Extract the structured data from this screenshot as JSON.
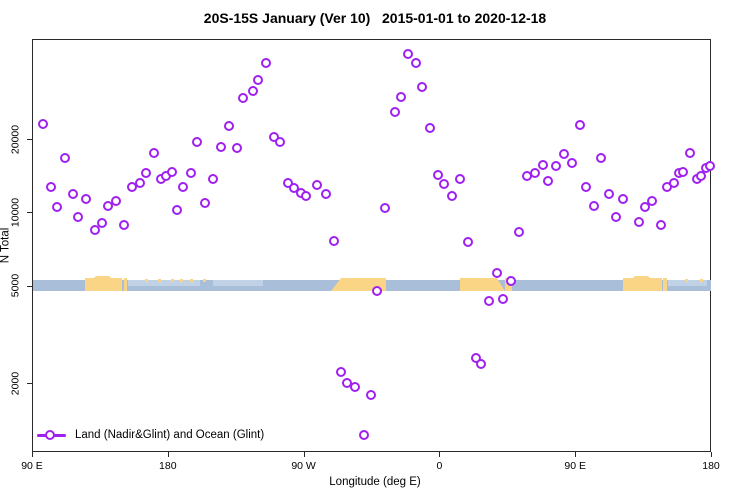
{
  "title": "20S-15S January (Ver 10)   2015-01-01 to 2020-12-18",
  "legend": {
    "label": "Land (Nadir&Glint) and Ocean (Glint)"
  },
  "colors": {
    "marker": "#A020F0",
    "ocean": "#A8BED9",
    "land": "#FBD586",
    "shallow": "#C6D6E7",
    "axis": "#2a2a2a"
  },
  "chart_data": {
    "type": "scatter",
    "title": "20S-15S January (Ver 10)   2015-01-01 to 2020-12-18",
    "xlabel": "Longitude (deg E)",
    "ylabel": "N Total",
    "x_axis": {
      "note": "cyclic longitude axis: 90E -> 180 -> 90W -> 0 -> 90E -> 180, stored as 90..540 deg",
      "range_deg": [
        90,
        540
      ],
      "ticks": [
        {
          "deg": 90,
          "label": "90 E"
        },
        {
          "deg": 180,
          "label": "180"
        },
        {
          "deg": 270,
          "label": "90 W"
        },
        {
          "deg": 360,
          "label": "0"
        },
        {
          "deg": 450,
          "label": "90 E"
        },
        {
          "deg": 540,
          "label": "180"
        }
      ]
    },
    "y_axis": {
      "scale": "log",
      "range": [
        1040,
        51000
      ],
      "grid": false,
      "ticks": [
        {
          "v": 20000,
          "label": "20000"
        },
        {
          "v": 10000,
          "label": "10000"
        },
        {
          "v": 5000,
          "label": "5000"
        },
        {
          "v": 2000,
          "label": "2000"
        }
      ]
    },
    "legend": {
      "label": "Land (Nadir&Glint) and Ocean (Glint)",
      "marker": "open-circle-on-line",
      "position": "bottom-left"
    },
    "series": [
      {
        "name": "Land (Nadir&Glint) and Ocean (Glint)",
        "color": "#A020F0",
        "marker": "open-circle",
        "points": [
          [
            97.3,
            23000
          ],
          [
            111.9,
            16700
          ],
          [
            102.6,
            12700
          ],
          [
            107.2,
            10500
          ],
          [
            117.2,
            11800
          ],
          [
            121.1,
            9500
          ],
          [
            126.4,
            11300
          ],
          [
            131.8,
            8400
          ],
          [
            136.4,
            9000
          ],
          [
            141.0,
            10600
          ],
          [
            146.3,
            11100
          ],
          [
            151.0,
            8800
          ],
          [
            156.3,
            12700
          ],
          [
            161.6,
            13100
          ],
          [
            166.2,
            14400
          ],
          [
            171.5,
            17400
          ],
          [
            175.5,
            13700
          ],
          [
            179.4,
            14100
          ],
          [
            182.8,
            14600
          ],
          [
            186.1,
            10200
          ],
          [
            190.1,
            12600
          ],
          [
            195.4,
            14500
          ],
          [
            200.0,
            19400
          ],
          [
            205.3,
            10900
          ],
          [
            245.7,
            40600
          ],
          [
            240.4,
            34900
          ],
          [
            236.5,
            31200
          ],
          [
            230.5,
            29400
          ],
          [
            220.6,
            22600
          ],
          [
            215.3,
            18500
          ],
          [
            225.9,
            18200
          ],
          [
            210.6,
            13700
          ],
          [
            250.4,
            20200
          ],
          [
            255.0,
            19400
          ],
          [
            260.3,
            13100
          ],
          [
            264.3,
            12500
          ],
          [
            268.3,
            12000
          ],
          [
            272.2,
            11600
          ],
          [
            278.9,
            12900
          ],
          [
            285.5,
            11900
          ],
          [
            290.8,
            7600
          ],
          [
            339.2,
            44200
          ],
          [
            344.5,
            40900
          ],
          [
            349.1,
            32400
          ],
          [
            334.6,
            29700
          ],
          [
            330.6,
            25800
          ],
          [
            354.4,
            22000
          ],
          [
            359.1,
            14200
          ],
          [
            363.7,
            13000
          ],
          [
            373.7,
            13600
          ],
          [
            369.0,
            11600
          ],
          [
            324.6,
            10400
          ],
          [
            379.0,
            7500
          ],
          [
            413.4,
            8300
          ],
          [
            418.7,
            14100
          ],
          [
            424.0,
            14500
          ],
          [
            428.7,
            15600
          ],
          [
            432.6,
            13400
          ],
          [
            437.9,
            15500
          ],
          [
            442.6,
            17200
          ],
          [
            447.9,
            15900
          ],
          [
            453.2,
            22800
          ],
          [
            467.7,
            16700
          ],
          [
            457.8,
            12700
          ],
          [
            473.0,
            11800
          ],
          [
            463.1,
            10600
          ],
          [
            482.3,
            11300
          ],
          [
            477.7,
            9500
          ],
          [
            492.3,
            9100
          ],
          [
            496.9,
            10500
          ],
          [
            501.5,
            11100
          ],
          [
            507.5,
            8800
          ],
          [
            511.4,
            12700
          ],
          [
            516.1,
            13100
          ],
          [
            519.4,
            14400
          ],
          [
            522.0,
            14600
          ],
          [
            526.7,
            17500
          ],
          [
            531.3,
            13700
          ],
          [
            533.9,
            14100
          ],
          [
            537.2,
            15200
          ],
          [
            539.9,
            15400
          ],
          [
            398.8,
            5600
          ],
          [
            408.1,
            5230
          ],
          [
            319.3,
            4760
          ],
          [
            393.5,
            4300
          ],
          [
            402.8,
            4380
          ],
          [
            384.3,
            2530
          ],
          [
            388.2,
            2390
          ],
          [
            294.8,
            2200
          ],
          [
            299.4,
            2000
          ],
          [
            304.7,
            1910
          ],
          [
            314.7,
            1780
          ],
          [
            310.1,
            1220
          ]
        ]
      }
    ],
    "land_ocean_strip": {
      "level_n": 5000,
      "ocean_color": "#A8BED9",
      "land_color": "#FBD586",
      "ocean_deg": [
        90.7,
        540
      ],
      "land_segments_deg": [
        {
          "from": 125.1,
          "to": 149.6,
          "edge": "bump"
        },
        {
          "from": 151.0,
          "to": 153.0,
          "edge": "none"
        },
        {
          "from": 288.2,
          "to": 324.6,
          "edge": "slant-left"
        },
        {
          "from": 373.6,
          "to": 403.4,
          "edge": "slant-right"
        },
        {
          "from": 403.4,
          "to": 408.1,
          "edge": "none"
        },
        {
          "from": 481.7,
          "to": 507.5,
          "edge": "bump"
        },
        {
          "from": 508.2,
          "to": 510.8,
          "edge": "none"
        }
      ],
      "shallow_zones_deg": [
        [
          153.6,
          201.3
        ],
        [
          209.9,
          243.1
        ],
        [
          511.5,
          537.3
        ]
      ],
      "island_specks_deg": [
        166.2,
        174.8,
        182.8,
        189.4,
        196.0,
        204.0,
        524.0,
        533.9
      ]
    }
  }
}
